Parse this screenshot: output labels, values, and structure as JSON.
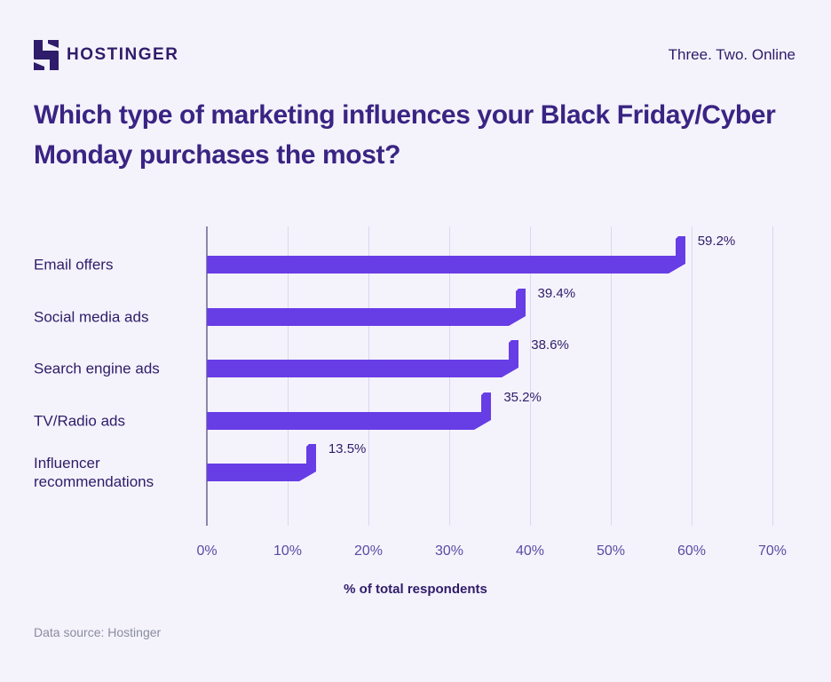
{
  "header": {
    "brand": "HOSTINGER",
    "tagline": "Three. Two. Online"
  },
  "chart_data": {
    "type": "bar",
    "orientation": "horizontal",
    "title": "Which type of marketing influences your Black Friday/Cyber Monday purchases the most?",
    "categories": [
      "Email offers",
      "Social media ads",
      "Search engine ads",
      "TV/Radio ads",
      "Influencer recommendations"
    ],
    "values": [
      59.2,
      39.4,
      38.6,
      35.2,
      13.5
    ],
    "value_labels": [
      "59.2%",
      "39.4%",
      "38.6%",
      "35.2%",
      "13.5%"
    ],
    "xlabel": "% of total respondents",
    "xlim": [
      0,
      70
    ],
    "xticks": [
      "0%",
      "10%",
      "20%",
      "30%",
      "40%",
      "50%",
      "60%",
      "70%"
    ],
    "grid": true,
    "legend": false,
    "bar_color": "#673DE6"
  },
  "footer": {
    "source": "Data source: Hostinger"
  },
  "theme": {
    "background": "#F4F3FB",
    "title_color": "#3A2483",
    "text_color": "#2F1C6A",
    "tick_color": "#5A4BA5",
    "grid_color": "#DBD7F0",
    "axis_color": "#8D87A8",
    "muted_color": "#8A8B9F",
    "bar_color": "#673DE6"
  }
}
